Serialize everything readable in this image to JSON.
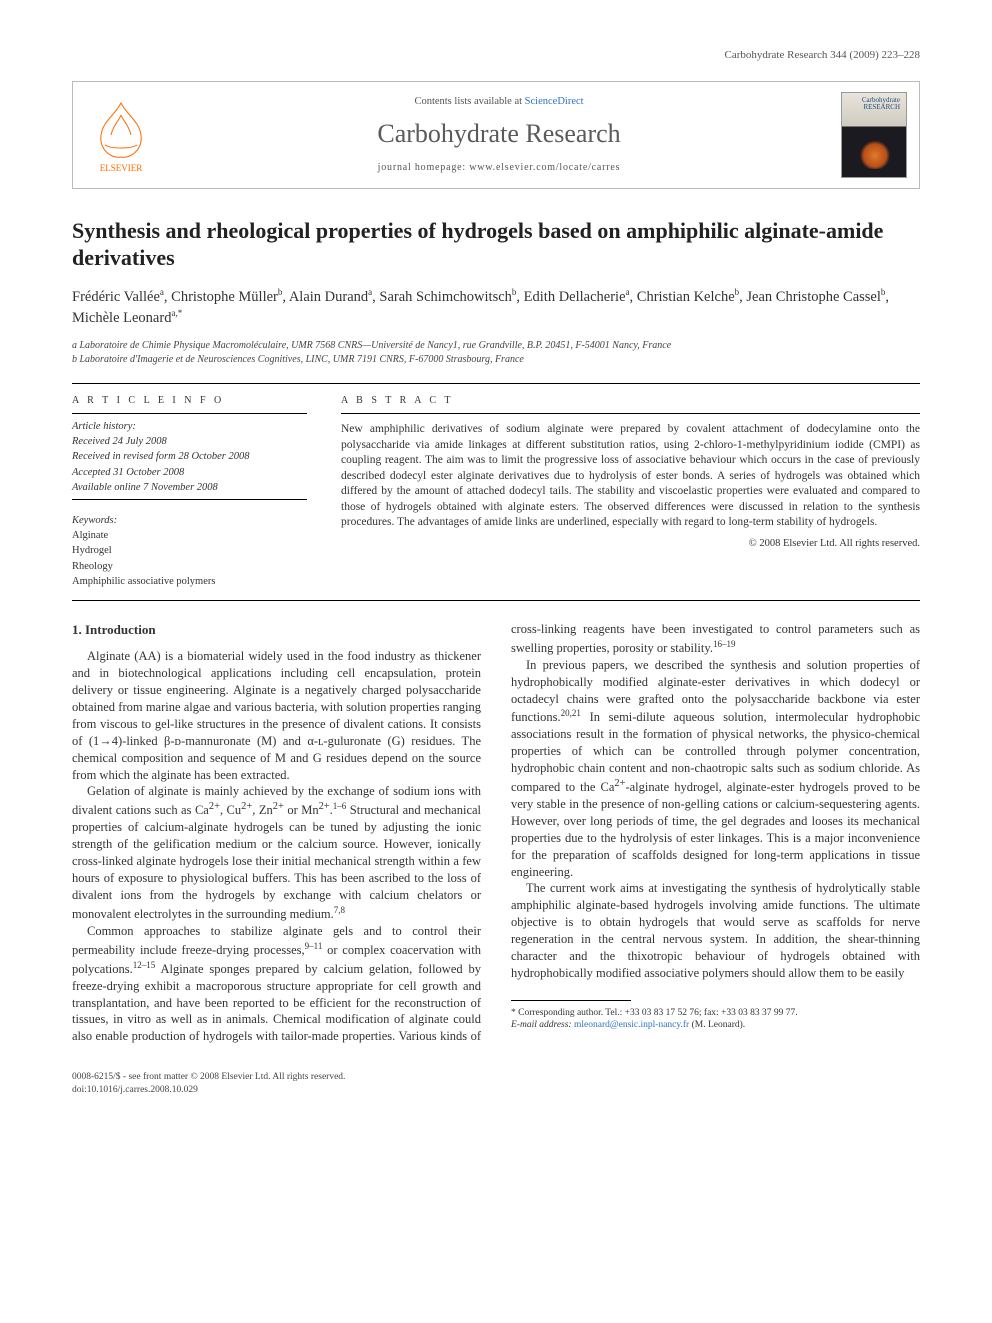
{
  "running_head": "Carbohydrate Research 344 (2009) 223–228",
  "banner": {
    "contents_prefix": "Contents lists available at ",
    "contents_link": "ScienceDirect",
    "journal": "Carbohydrate Research",
    "homepage": "journal homepage: www.elsevier.com/locate/carres",
    "publisher": "ELSEVIER",
    "cover_title": "Carbohydrate RESEARCH"
  },
  "title": "Synthesis and rheological properties of hydrogels based on amphiphilic alginate-amide derivatives",
  "authors_html": "Frédéric Vallée<sup>a</sup>, Christophe Müller<sup>b</sup>, Alain Durand<sup>a</sup>, Sarah Schimchowitsch<sup>b</sup>, Edith Dellacherie<sup>a</sup>, Christian Kelche<sup>b</sup>, Jean Christophe Cassel<sup>b</sup>, Michèle Leonard<sup>a,*</sup>",
  "affiliations": [
    "a Laboratoire de Chimie Physique Macromoléculaire, UMR 7568 CNRS—Université de Nancy1, rue Grandville, B.P. 20451, F-54001 Nancy, France",
    "b Laboratoire d'Imagerie et de Neurosciences Cognitives, LINC, UMR 7191 CNRS, F-67000 Strasbourg, France"
  ],
  "info_head": "A R T I C L E   I N F O",
  "abs_head": "A B S T R A C T",
  "history_head": "Article history:",
  "history": [
    "Received 24 July 2008",
    "Received in revised form 28 October 2008",
    "Accepted 31 October 2008",
    "Available online 7 November 2008"
  ],
  "keywords_head": "Keywords:",
  "keywords": [
    "Alginate",
    "Hydrogel",
    "Rheology",
    "Amphiphilic associative polymers"
  ],
  "abstract": "New amphiphilic derivatives of sodium alginate were prepared by covalent attachment of dodecylamine onto the polysaccharide via amide linkages at different substitution ratios, using 2-chloro-1-methylpyridinium iodide (CMPI) as coupling reagent. The aim was to limit the progressive loss of associative behaviour which occurs in the case of previously described dodecyl ester alginate derivatives due to hydrolysis of ester bonds. A series of hydrogels was obtained which differed by the amount of attached dodecyl tails. The stability and viscoelastic properties were evaluated and compared to those of hydrogels obtained with alginate esters. The observed differences were discussed in relation to the synthesis procedures. The advantages of amide links are underlined, especially with regard to long-term stability of hydrogels.",
  "copyright": "© 2008 Elsevier Ltd. All rights reserved.",
  "section1_head": "1. Introduction",
  "p1": "Alginate (AA) is a biomaterial widely used in the food industry as thickener and in biotechnological applications including cell encapsulation, protein delivery or tissue engineering. Alginate is a negatively charged polysaccharide obtained from marine algae and various bacteria, with solution properties ranging from viscous to gel-like structures in the presence of divalent cations. It consists of (1→4)-linked β-ᴅ-mannuronate (M) and α-ʟ-guluronate (G) residues. The chemical composition and sequence of M and G residues depend on the source from which the alginate has been extracted.",
  "p2_a": "Gelation of alginate is mainly achieved by the exchange of sodium ions with divalent cations such as Ca",
  "p2_b": ", Cu",
  "p2_c": ", Zn",
  "p2_d": " or Mn",
  "p2_e": " Structural and mechanical properties of calcium-alginate hydrogels can be tuned by adjusting the ionic strength of the gelification medium or the calcium source. However, ionically cross-linked alginate hydrogels lose their initial mechanical strength within a few hours of exposure to physiological buffers. This has been ascribed to the loss of divalent ions from the hydrogels by exchange with calcium chelators or monovalent electrolytes in the surrounding medium.",
  "p3_a": "Common approaches to stabilize alginate gels and to control their permeability include freeze-drying processes,",
  "p3_b": " or complex coacervation with polycations.",
  "p3_c": " Alginate sponges prepared by calcium gelation, followed by freeze-drying exhibit a macroporous structure appropriate for cell growth and transplantation, and have been reported to be efficient for the reconstruction of tissues, in vitro as well as in animals. Chemical modification of alginate could also enable production of hydrogels with tailor-made properties. Various kinds of cross-linking reagents have been investigated to control parameters such as swelling properties, porosity or stability.",
  "p4_a": "In previous papers, we described the synthesis and solution properties of hydrophobically modified alginate-ester derivatives in which dodecyl or octadecyl chains were grafted onto the polysaccharide backbone via ester functions.",
  "p4_b": " In semi-dilute aqueous solution, intermolecular hydrophobic associations result in the formation of physical networks, the physico-chemical properties of which can be controlled through polymer concentration, hydrophobic chain content and non-chaotropic salts such as sodium chloride. As compared to the Ca",
  "p4_c": "-alginate hydrogel, alginate-ester hydrogels proved to be very stable in the presence of non-gelling cations or calcium-sequestering agents. However, over long periods of time, the gel degrades and looses its mechanical properties due to the hydrolysis of ester linkages. This is a major inconvenience for the preparation of scaffolds designed for long-term applications in tissue engineering.",
  "p5": "The current work aims at investigating the synthesis of hydrolytically stable amphiphilic alginate-based hydrogels involving amide functions. The ultimate objective is to obtain hydrogels that would serve as scaffolds for nerve regeneration in the central nervous system. In addition, the shear-thinning character and the thixotropic behaviour of hydrogels obtained with hydrophobically modified associative polymers should allow them to be easily",
  "footnote": {
    "corr": "* Corresponding author. Tel.: +33 03 83 17 52 76; fax: +33 03 83 37 99 77.",
    "email_label": "E-mail address:",
    "email": "mleonard@ensic.inpl-nancy.fr",
    "email_suffix": "(M. Leonard)."
  },
  "footer": {
    "left1": "0008-6215/$ - see front matter © 2008 Elsevier Ltd. All rights reserved.",
    "left2": "doi:10.1016/j.carres.2008.10.029"
  },
  "refs": {
    "r1_6": "1–6",
    "r7_8": "7,8",
    "r9_11": "9–11",
    "r12_15": "12–15",
    "r16_19": "16–19",
    "r20_21": "20,21"
  },
  "colors": {
    "link": "#2f74c0",
    "publisher_orange": "#ff6a00",
    "text": "#333333",
    "rule": "#000000"
  },
  "typography": {
    "body_pt": 12.5,
    "title_pt": 22,
    "journal_pt": 26,
    "meta_pt": 10.5,
    "abstract_pt": 11.5,
    "footnote_pt": 9.5
  }
}
